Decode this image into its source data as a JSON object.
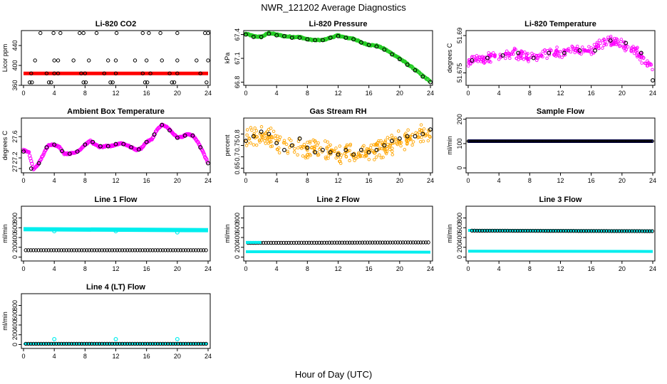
{
  "title": "NWR_121202  Average Diagnostics",
  "xlabel": "Hour of Day (UTC)",
  "colors": {
    "black": "#000000",
    "red": "#ff0000",
    "green": "#22cc22",
    "magenta": "#ff00ff",
    "orange": "#ffa500",
    "blue": "#0000ff",
    "cyan": "#00eeee"
  },
  "chart_data": [
    {
      "type": "scatter",
      "title": "Li-820 CO2",
      "ylabel": "Licor ppm",
      "xlim": [
        0,
        24
      ],
      "ylim": [
        360,
        470
      ],
      "xticks": [
        0,
        4,
        8,
        12,
        16,
        20,
        24
      ],
      "yticks": [
        360,
        400,
        440
      ],
      "series": [
        {
          "color": "red",
          "style": "band",
          "x": [
            0,
            24
          ],
          "y": [
            384,
            384
          ]
        },
        {
          "color": "black",
          "style": "sparse-levels",
          "step": 0.5,
          "x": [
            0.05,
            24.0
          ],
          "levels": [
            [
              366,
              0.8,
              1.1,
              3.3,
              3.6,
              7.8,
              8.1,
              11.3,
              11.6,
              15.8,
              16.1,
              19.3,
              19.6,
              23.8
            ],
            [
              384,
              1.0,
              3.0,
              4.0,
              4.5,
              7.5,
              8.0,
              10.5,
              12.0,
              15.5,
              16.5,
              19.0,
              20.0,
              23.0
            ],
            [
              410,
              1.5,
              4.0,
              4.5,
              6.5,
              8.5,
              11.0,
              12.0,
              14.5,
              16.0,
              18.0,
              20.0,
              22.5,
              24.0
            ],
            [
              465,
              2.2,
              3.9,
              4.8,
              7.3,
              7.8,
              9.5,
              12.1,
              15.5,
              16.3,
              17.8,
              20.0,
              23.6,
              24.0
            ]
          ]
        }
      ]
    },
    {
      "type": "scatter",
      "title": "Li-820 Pressure",
      "ylabel": "kPa",
      "xlim": [
        0,
        24
      ],
      "ylim": [
        66.76,
        67.45
      ],
      "xticks": [
        0,
        4,
        8,
        12,
        16,
        20,
        24
      ],
      "yticks": [
        66.8,
        67.1,
        67.4
      ],
      "series": [
        {
          "color": "green",
          "style": "dense",
          "x": [
            0,
            1,
            2,
            3,
            4,
            5,
            6,
            7,
            8,
            9,
            10,
            11,
            12,
            13,
            14,
            15,
            16,
            17,
            18,
            19,
            20,
            21,
            22,
            23,
            24
          ],
          "y": [
            67.41,
            67.38,
            67.37,
            67.42,
            67.4,
            67.38,
            67.37,
            67.37,
            67.34,
            67.33,
            67.33,
            67.36,
            67.39,
            67.36,
            67.35,
            67.3,
            67.27,
            67.26,
            67.22,
            67.16,
            67.1,
            67.03,
            66.96,
            66.88,
            66.81
          ]
        },
        {
          "color": "black",
          "style": "circles",
          "x": [
            0,
            1,
            2,
            3,
            4,
            5,
            6,
            7,
            8,
            9,
            10,
            11,
            12,
            13,
            14,
            15,
            16,
            17,
            18,
            19,
            20,
            21,
            22,
            23,
            24
          ],
          "y": [
            67.4,
            67.37,
            67.37,
            67.41,
            67.39,
            67.38,
            67.36,
            67.36,
            67.34,
            67.33,
            67.33,
            67.36,
            67.38,
            67.36,
            67.34,
            67.3,
            67.27,
            67.25,
            67.21,
            67.15,
            67.09,
            67.02,
            66.95,
            66.87,
            66.8
          ]
        }
      ]
    },
    {
      "type": "scatter",
      "title": "Li-820 Temperature",
      "ylabel": "degrees C",
      "xlim": [
        0,
        24
      ],
      "ylim": [
        51.67,
        51.692
      ],
      "xticks": [
        0,
        4,
        8,
        12,
        16,
        20,
        24
      ],
      "yticks": [
        51.675,
        51.69
      ],
      "series": [
        {
          "color": "magenta",
          "style": "noisy",
          "noise": 0.0024,
          "x": [
            0,
            2,
            4,
            6,
            8,
            10,
            12,
            14,
            16,
            18,
            20,
            22,
            24
          ],
          "y": [
            51.68,
            51.681,
            51.682,
            51.683,
            51.681,
            51.683,
            51.683,
            51.684,
            51.684,
            51.688,
            51.687,
            51.683,
            51.676
          ]
        },
        {
          "color": "black",
          "style": "circles",
          "x": [
            0.5,
            2.5,
            4.5,
            6.5,
            8.5,
            10.5,
            12.5,
            14.5,
            16.5,
            18.5,
            20.5,
            22.5,
            24
          ],
          "y": [
            51.68,
            51.681,
            51.682,
            51.683,
            51.681,
            51.683,
            51.683,
            51.684,
            51.684,
            51.688,
            51.687,
            51.683,
            51.672
          ]
        }
      ]
    },
    {
      "type": "scatter",
      "title": "Ambient Box Temperature",
      "ylabel": "degrees C",
      "xlim": [
        0,
        24
      ],
      "ylim": [
        26.92,
        27.95
      ],
      "xticks": [
        0,
        4,
        8,
        12,
        16,
        20,
        24
      ],
      "yticks": [
        27.0,
        27.2,
        27.6
      ],
      "series": [
        {
          "color": "magenta",
          "style": "dense",
          "x": [
            0,
            0.7,
            1.3,
            2,
            2.7,
            3.3,
            4,
            4.7,
            5.3,
            6,
            6.7,
            7.3,
            8,
            8.7,
            9.3,
            10,
            10.7,
            11.3,
            12,
            12.7,
            13.3,
            14,
            14.7,
            15.3,
            16,
            16.7,
            17.3,
            18,
            18.7,
            19.3,
            20,
            20.7,
            21.3,
            22,
            22.7,
            23.3,
            24
          ],
          "y": [
            27.35,
            27.3,
            26.98,
            27.1,
            27.3,
            27.45,
            27.45,
            27.4,
            27.28,
            27.28,
            27.3,
            27.35,
            27.45,
            27.52,
            27.45,
            27.4,
            27.42,
            27.42,
            27.45,
            27.48,
            27.45,
            27.4,
            27.35,
            27.38,
            27.5,
            27.55,
            27.72,
            27.82,
            27.78,
            27.68,
            27.58,
            27.6,
            27.65,
            27.62,
            27.5,
            27.32,
            27.1
          ]
        },
        {
          "color": "black",
          "style": "circles",
          "x": [
            0,
            1,
            2,
            3,
            4,
            5,
            6,
            7,
            8,
            9,
            10,
            11,
            12,
            13,
            14,
            15,
            16,
            17,
            18,
            19,
            20,
            21,
            22,
            23,
            24
          ],
          "y": [
            27.32,
            27.0,
            27.1,
            27.4,
            27.45,
            27.33,
            27.28,
            27.32,
            27.45,
            27.5,
            27.42,
            27.42,
            27.46,
            27.46,
            27.4,
            27.36,
            27.5,
            27.64,
            27.82,
            27.72,
            27.58,
            27.62,
            27.62,
            27.4,
            27.1
          ]
        }
      ]
    },
    {
      "type": "scatter",
      "title": "Gas Stream RH",
      "ylabel": "percent",
      "xlim": [
        0,
        24
      ],
      "ylim": [
        0.63,
        0.87
      ],
      "xticks": [
        0,
        4,
        8,
        12,
        16,
        20,
        24
      ],
      "yticks": [
        0.65,
        0.7,
        0.75,
        0.8
      ],
      "series": [
        {
          "color": "orange",
          "style": "noisy",
          "noise": 0.05,
          "x": [
            0,
            2,
            4,
            6,
            8,
            10,
            12,
            14,
            16,
            18,
            20,
            22,
            24
          ],
          "y": [
            0.79,
            0.79,
            0.77,
            0.74,
            0.74,
            0.73,
            0.72,
            0.71,
            0.72,
            0.74,
            0.77,
            0.79,
            0.81
          ]
        },
        {
          "color": "black",
          "style": "circles",
          "x": [
            0,
            1,
            2,
            3,
            4,
            5,
            6,
            7,
            8,
            9,
            10,
            11,
            12,
            13,
            14,
            15,
            16,
            17,
            18,
            19,
            20,
            21,
            22,
            23,
            24
          ],
          "y": [
            0.77,
            0.79,
            0.81,
            0.8,
            0.76,
            0.73,
            0.75,
            0.78,
            0.74,
            0.72,
            0.73,
            0.72,
            0.71,
            0.73,
            0.71,
            0.73,
            0.72,
            0.73,
            0.75,
            0.77,
            0.78,
            0.79,
            0.79,
            0.8,
            0.82
          ]
        }
      ]
    },
    {
      "type": "scatter",
      "title": "Sample Flow",
      "ylabel": "ml/min",
      "xlim": [
        0,
        24
      ],
      "ylim": [
        -20,
        205
      ],
      "xticks": [
        0,
        4,
        8,
        12,
        16,
        20,
        24
      ],
      "yticks": [
        0,
        100,
        200
      ],
      "series": [
        {
          "color": "blue",
          "style": "band",
          "x": [
            0,
            24
          ],
          "y": [
            110,
            110
          ]
        },
        {
          "color": "black",
          "style": "band-outline",
          "x": [
            0,
            24
          ],
          "y": [
            110,
            110
          ]
        }
      ]
    },
    {
      "type": "scatter",
      "title": "Line 1 Flow",
      "ylabel": "ml/min",
      "xlim": [
        0,
        24
      ],
      "ylim": [
        -80,
        1040
      ],
      "xticks": [
        0,
        4,
        8,
        12,
        16,
        20,
        24
      ],
      "yticks": [
        0,
        200,
        400,
        600,
        800
      ],
      "series": [
        {
          "color": "cyan",
          "style": "band",
          "x": [
            0,
            24
          ],
          "y": [
            570,
            550
          ],
          "thick": 6
        },
        {
          "color": "cyan",
          "style": "dips",
          "x": [
            4,
            12,
            20
          ],
          "y": [
            530,
            530,
            505
          ]
        },
        {
          "color": "black",
          "style": "chain",
          "x": [
            0.3,
            24
          ],
          "y": [
            140,
            140
          ]
        }
      ]
    },
    {
      "type": "scatter",
      "title": "Line 2 Flow",
      "ylabel": "ml/min",
      "xlim": [
        0,
        24
      ],
      "ylim": [
        -80,
        1040
      ],
      "xticks": [
        0,
        4,
        8,
        12,
        16,
        20,
        24
      ],
      "yticks": [
        0,
        200,
        400,
        600,
        800
      ],
      "series": [
        {
          "color": "cyan",
          "style": "band",
          "x": [
            0,
            24
          ],
          "y": [
            110,
            100
          ],
          "thick": 4
        },
        {
          "color": "black",
          "style": "chain",
          "x": [
            0.3,
            24
          ],
          "y": [
            290,
            300
          ]
        },
        {
          "color": "cyan",
          "style": "band",
          "x": [
            0,
            2
          ],
          "y": [
            300,
            300
          ],
          "thick": 4
        }
      ]
    },
    {
      "type": "scatter",
      "title": "Line 3 Flow",
      "ylabel": "ml/min",
      "xlim": [
        0,
        24
      ],
      "ylim": [
        -80,
        1040
      ],
      "xticks": [
        0,
        4,
        8,
        12,
        16,
        20,
        24
      ],
      "yticks": [
        0,
        200,
        400,
        600,
        800
      ],
      "series": [
        {
          "color": "cyan",
          "style": "band",
          "x": [
            0,
            24
          ],
          "y": [
            120,
            115
          ],
          "thick": 4
        },
        {
          "color": "cyan",
          "style": "band",
          "x": [
            0,
            24
          ],
          "y": [
            545,
            535
          ],
          "thick": 4
        },
        {
          "color": "black",
          "style": "chain",
          "x": [
            0.5,
            24
          ],
          "y": [
            540,
            530
          ]
        }
      ]
    },
    {
      "type": "scatter",
      "title": "Line 4 (LT) Flow",
      "ylabel": "ml/min",
      "xlim": [
        0,
        24
      ],
      "ylim": [
        -80,
        1040
      ],
      "xticks": [
        0,
        4,
        8,
        12,
        16,
        20,
        24
      ],
      "yticks": [
        0,
        200,
        400,
        600,
        800
      ],
      "series": [
        {
          "color": "cyan",
          "style": "band",
          "x": [
            0,
            24
          ],
          "y": [
            15,
            15
          ],
          "thick": 3
        },
        {
          "color": "black",
          "style": "chain",
          "x": [
            0.3,
            24
          ],
          "y": [
            15,
            15
          ]
        },
        {
          "color": "cyan",
          "style": "dips",
          "x": [
            4,
            12,
            20
          ],
          "y": [
            110,
            110,
            110
          ]
        }
      ]
    }
  ]
}
